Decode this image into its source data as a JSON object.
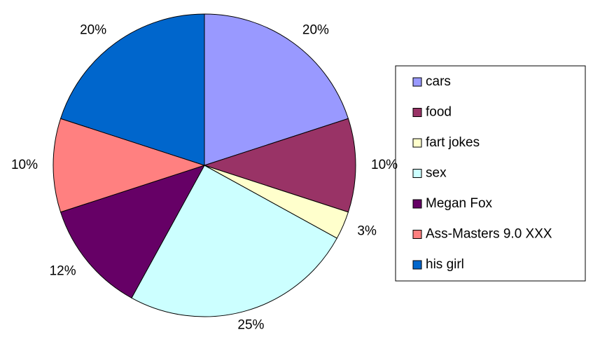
{
  "chart_data": {
    "type": "pie",
    "categories": [
      "cars",
      "food",
      "fart jokes",
      "sex",
      "Megan Fox",
      "Ass-Masters 9.0 XXX",
      "his girl"
    ],
    "values": [
      20,
      10,
      3,
      25,
      12,
      10,
      20
    ],
    "value_labels": [
      "20%",
      "10%",
      "3%",
      "25%",
      "12%",
      "10%",
      "20%"
    ],
    "colors": [
      "#9999ff",
      "#993366",
      "#ffffcc",
      "#ccffff",
      "#660066",
      "#ff8080",
      "#0066cc"
    ],
    "legend": "right"
  }
}
